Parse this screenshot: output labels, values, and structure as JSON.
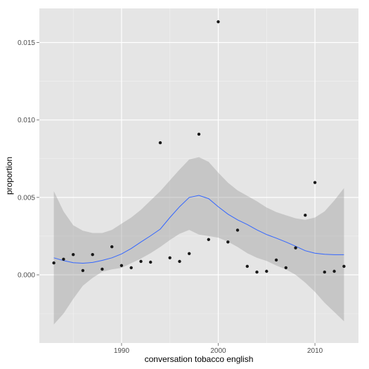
{
  "chart_data": {
    "type": "scatter",
    "title": "",
    "xlabel": "conversation tobacco english",
    "ylabel": "proportion",
    "xlim": [
      1981.5,
      2014.5
    ],
    "ylim": [
      -0.0044,
      0.0172
    ],
    "x_ticks": [
      1990,
      2000,
      2010
    ],
    "x_tick_labels": [
      "1990",
      "2000",
      "2010"
    ],
    "y_ticks": [
      0.0,
      0.005,
      0.01,
      0.015
    ],
    "y_tick_labels": [
      "0.000",
      "0.005",
      "0.010",
      "0.015"
    ],
    "grid": true,
    "legend": "none",
    "colors": {
      "panel": "#e5e5e5",
      "grid": "#ffffff",
      "points": "#1a1a1a",
      "smooth": "#3366ff",
      "band": "#999999"
    },
    "points": {
      "x": [
        1983,
        1984,
        1985,
        1986,
        1987,
        1988,
        1989,
        1990,
        1991,
        1992,
        1993,
        1994,
        1995,
        1996,
        1997,
        1998,
        1999,
        2000,
        2001,
        2002,
        2003,
        2004,
        2005,
        2006,
        2007,
        2008,
        2009,
        2010,
        2011,
        2012,
        2013
      ],
      "y": [
        0.00077,
        0.00101,
        0.00131,
        0.00028,
        0.00131,
        0.00037,
        0.00181,
        0.0006,
        0.00046,
        0.00087,
        0.00082,
        0.00853,
        0.0011,
        0.00087,
        0.00137,
        0.00908,
        0.00228,
        0.01634,
        0.00212,
        0.00289,
        0.00055,
        0.00018,
        0.00023,
        0.00096,
        0.00046,
        0.00174,
        0.00385,
        0.00596,
        0.00018,
        0.00023,
        0.00055
      ]
    },
    "smooth": {
      "x": [
        1983,
        1984,
        1985,
        1986,
        1987,
        1988,
        1989,
        1990,
        1991,
        1992,
        1993,
        1994,
        1995,
        1996,
        1997,
        1998,
        1999,
        2000,
        2001,
        2002,
        2003,
        2004,
        2005,
        2006,
        2007,
        2008,
        2009,
        2010,
        2011,
        2012,
        2013
      ],
      "y": [
        0.0011,
        0.00092,
        0.00078,
        0.00075,
        0.0008,
        0.00093,
        0.0011,
        0.00135,
        0.0017,
        0.00212,
        0.00252,
        0.00295,
        0.0037,
        0.0044,
        0.005,
        0.00513,
        0.00492,
        0.0044,
        0.00392,
        0.00355,
        0.00325,
        0.0029,
        0.0026,
        0.00237,
        0.00212,
        0.00185,
        0.00156,
        0.0014,
        0.00133,
        0.0013,
        0.0013
      ],
      "lower": [
        -0.0032,
        -0.0025,
        -0.00155,
        -0.0007,
        -0.0002,
        0.0002,
        0.00035,
        0.00045,
        0.00075,
        0.00105,
        0.0014,
        0.0018,
        0.00225,
        0.00265,
        0.0029,
        0.0026,
        0.0025,
        0.0024,
        0.00215,
        0.0018,
        0.0014,
        0.0011,
        0.0009,
        0.0006,
        0.00035,
        0.0,
        -0.0005,
        -0.0011,
        -0.0018,
        -0.0024,
        -0.003
      ],
      "upper": [
        0.0054,
        0.0041,
        0.0032,
        0.00285,
        0.0027,
        0.0027,
        0.0029,
        0.0033,
        0.0037,
        0.0042,
        0.0048,
        0.0054,
        0.0061,
        0.0068,
        0.00745,
        0.0076,
        0.0073,
        0.0066,
        0.00595,
        0.00545,
        0.0051,
        0.00475,
        0.00435,
        0.00405,
        0.00385,
        0.00365,
        0.00355,
        0.0037,
        0.0041,
        0.0048,
        0.0056
      ]
    }
  }
}
